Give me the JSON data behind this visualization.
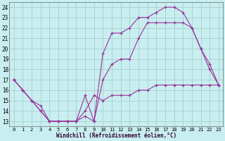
{
  "xlabel": "Windchill (Refroidissement éolien,°C)",
  "bg_color": "#c8eef0",
  "line_color": "#993399",
  "grid_color": "#a0c8c8",
  "xlim": [
    -0.5,
    23.5
  ],
  "ylim": [
    12.5,
    24.5
  ],
  "xticks": [
    0,
    1,
    2,
    3,
    4,
    5,
    6,
    7,
    8,
    9,
    10,
    11,
    12,
    13,
    14,
    15,
    16,
    17,
    18,
    19,
    20,
    21,
    22,
    23
  ],
  "yticks": [
    13,
    14,
    15,
    16,
    17,
    18,
    19,
    20,
    21,
    22,
    23,
    24
  ],
  "line1_x": [
    0,
    1,
    2,
    3,
    4,
    5,
    6,
    7,
    8,
    9,
    10,
    11,
    12,
    13,
    14,
    15,
    16,
    17,
    18,
    19,
    20,
    21,
    22,
    23
  ],
  "line1_y": [
    17,
    16,
    15,
    14,
    13,
    13,
    13,
    13,
    15.5,
    13,
    19.5,
    21.5,
    21.5,
    22,
    23,
    23,
    23.5,
    24,
    24,
    23.5,
    22,
    20,
    18,
    16.5
  ],
  "line2_x": [
    0,
    1,
    2,
    3,
    4,
    5,
    6,
    7,
    8,
    9,
    10,
    11,
    12,
    13,
    14,
    15,
    16,
    17,
    18,
    19,
    20,
    21,
    22,
    23
  ],
  "line2_y": [
    17,
    16,
    15,
    14,
    13,
    13,
    13,
    13,
    13.5,
    13,
    17,
    18.5,
    19,
    19,
    21,
    22.5,
    22.5,
    22.5,
    22.5,
    22.5,
    22,
    20,
    18.5,
    16.5
  ],
  "line3_x": [
    0,
    1,
    2,
    3,
    4,
    5,
    6,
    7,
    8,
    9,
    10,
    11,
    12,
    13,
    14,
    15,
    16,
    17,
    18,
    19,
    20,
    21,
    22,
    23
  ],
  "line3_y": [
    17,
    16,
    15,
    14.5,
    13,
    13,
    13,
    13,
    14,
    15.5,
    15,
    15.5,
    15.5,
    15.5,
    16,
    16,
    16.5,
    16.5,
    16.5,
    16.5,
    16.5,
    16.5,
    16.5,
    16.5
  ]
}
